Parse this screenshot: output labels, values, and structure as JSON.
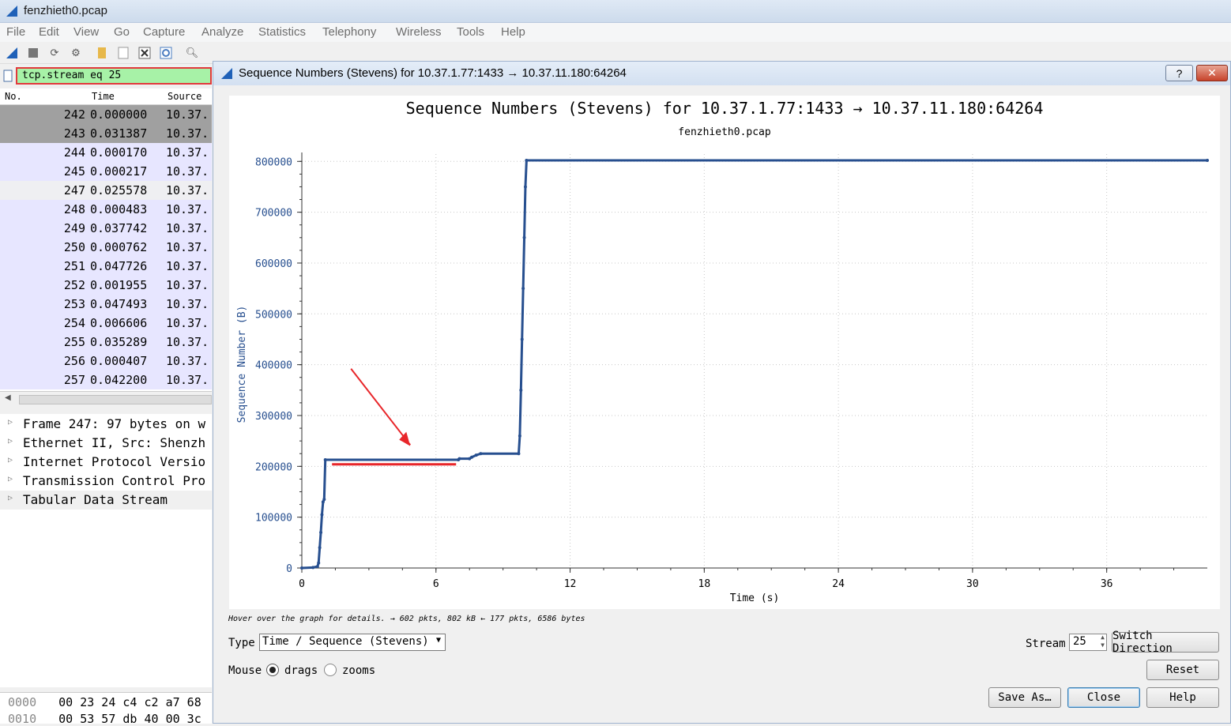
{
  "window": {
    "title": "fenzhieth0.pcap"
  },
  "menu": [
    "File",
    "Edit",
    "View",
    "Go",
    "Capture",
    "Analyze",
    "Statistics",
    "Telephony",
    "Wireless",
    "Tools",
    "Help"
  ],
  "filter": {
    "value": "tcp.stream eq 25"
  },
  "packet_list": {
    "columns": [
      "No.",
      "Time",
      "Source"
    ],
    "rows": [
      {
        "no": "242",
        "time": "0.000000",
        "src": "10.37."
      },
      {
        "no": "243",
        "time": "0.031387",
        "src": "10.37."
      },
      {
        "no": "244",
        "time": "0.000170",
        "src": "10.37."
      },
      {
        "no": "245",
        "time": "0.000217",
        "src": "10.37."
      },
      {
        "no": "247",
        "time": "0.025578",
        "src": "10.37."
      },
      {
        "no": "248",
        "time": "0.000483",
        "src": "10.37."
      },
      {
        "no": "249",
        "time": "0.037742",
        "src": "10.37."
      },
      {
        "no": "250",
        "time": "0.000762",
        "src": "10.37."
      },
      {
        "no": "251",
        "time": "0.047726",
        "src": "10.37."
      },
      {
        "no": "252",
        "time": "0.001955",
        "src": "10.37."
      },
      {
        "no": "253",
        "time": "0.047493",
        "src": "10.37."
      },
      {
        "no": "254",
        "time": "0.006606",
        "src": "10.37."
      },
      {
        "no": "255",
        "time": "0.035289",
        "src": "10.37."
      },
      {
        "no": "256",
        "time": "0.000407",
        "src": "10.37."
      },
      {
        "no": "257",
        "time": "0.042200",
        "src": "10.37."
      }
    ]
  },
  "details": [
    "Frame 247: 97 bytes on w",
    "Ethernet II, Src: Shenzh",
    "Internet Protocol Versio",
    "Transmission Control Pro",
    "Tabular Data Stream"
  ],
  "hex": [
    {
      "offset": "0000",
      "bytes": "00 23 24 c4 c2 a7 68"
    },
    {
      "offset": "0010",
      "bytes": "00 53 57 db 40 00 3c"
    }
  ],
  "dialog": {
    "title": "Sequence Numbers (Stevens) for 10.37.1.77:1433 → 10.37.11.180:64264",
    "help_label": "?",
    "close_x": "✕",
    "hint": "Hover over the graph for details. → 602 pkts, 802 kB ← 177 pkts, 6586 bytes",
    "type_label": "Type",
    "type_value": "Time / Sequence (Stevens)",
    "mouse_label": "Mouse",
    "drags_label": "drags",
    "zooms_label": "zooms",
    "stream_label": "Stream",
    "stream_value": "25",
    "switch_label": "Switch Direction",
    "reset_label": "Reset",
    "save_label": "Save As…",
    "close_label": "Close",
    "help_button_label": "Help"
  },
  "chart_data": {
    "type": "line",
    "title": "Sequence Numbers (Stevens) for 10.37.1.77:1433 → 10.37.11.180:64264",
    "subtitle": "fenzhieth0.pcap",
    "xlabel": "Time (s)",
    "ylabel": "Sequence Number (B)",
    "xlim": [
      0,
      40.5
    ],
    "ylim": [
      0,
      802000
    ],
    "xticks": [
      0,
      6,
      12,
      18,
      24,
      30,
      36
    ],
    "yticks": [
      0,
      100000,
      200000,
      300000,
      400000,
      500000,
      600000,
      700000,
      800000
    ],
    "grid": true,
    "series": [
      {
        "color": "#274f8f",
        "x": [
          0,
          0.5,
          0.7,
          0.75,
          0.8,
          0.85,
          0.9,
          0.95,
          1.0,
          1.05,
          7.0,
          7.05,
          7.5,
          7.6,
          7.8,
          8.0,
          9.7,
          9.75,
          9.8,
          9.85,
          9.9,
          9.95,
          10.0,
          10.05,
          40.5
        ],
        "y": [
          0,
          1000,
          3000,
          10000,
          40000,
          70000,
          105000,
          130000,
          135000,
          213000,
          213000,
          215000,
          215000,
          218000,
          222000,
          225000,
          225000,
          260000,
          350000,
          450000,
          550000,
          650000,
          750000,
          802000,
          802000
        ]
      }
    ]
  },
  "annotation": {
    "color": "#e8262a"
  }
}
